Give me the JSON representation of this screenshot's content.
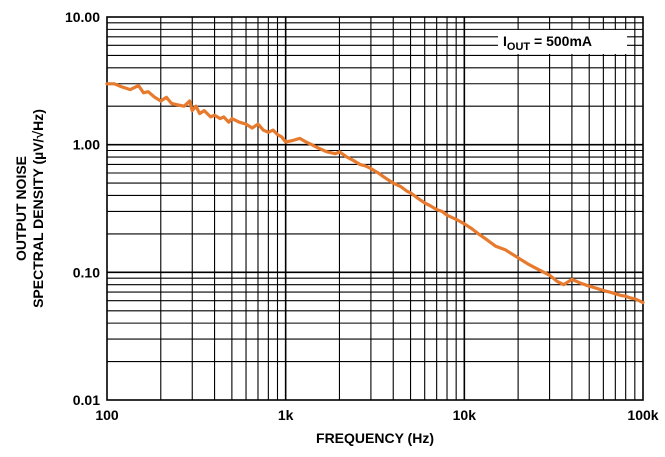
{
  "chart_data": {
    "type": "line",
    "title": "",
    "xlabel": "FREQUENCY (Hz)",
    "ylabel_line1": "OUTPUT NOISE",
    "ylabel_line2": "SPECTRAL DENSITY (µV/√Hz)",
    "x_scale": "log",
    "y_scale": "log",
    "xlim": [
      100,
      100000
    ],
    "ylim": [
      0.01,
      10
    ],
    "x_ticks": [
      {
        "value": 100,
        "label": "100"
      },
      {
        "value": 1000,
        "label": "1k"
      },
      {
        "value": 10000,
        "label": "10k"
      },
      {
        "value": 100000,
        "label": "100k"
      }
    ],
    "y_ticks": [
      {
        "value": 10,
        "label": "10.00"
      },
      {
        "value": 1,
        "label": "1.00"
      },
      {
        "value": 0.1,
        "label": "0.10"
      },
      {
        "value": 0.01,
        "label": "0.01"
      }
    ],
    "grid": true,
    "annotation": {
      "main": "I",
      "sub": "OUT",
      "rest": " = 500mA"
    },
    "series": [
      {
        "color": "#e87a2e",
        "x": [
          100,
          110,
          120,
          135,
          150,
          160,
          170,
          185,
          200,
          215,
          230,
          250,
          270,
          290,
          300,
          315,
          330,
          350,
          380,
          400,
          430,
          450,
          480,
          500,
          550,
          600,
          650,
          700,
          750,
          800,
          850,
          900,
          950,
          1000,
          1100,
          1200,
          1300,
          1400,
          1500,
          1700,
          1900,
          2000,
          2200,
          2400,
          2600,
          2800,
          3000,
          3300,
          3600,
          4000,
          4400,
          4800,
          5000,
          5500,
          6000,
          6500,
          7000,
          7500,
          8000,
          9000,
          10000,
          11000,
          12000,
          13000,
          15000,
          17000,
          20000,
          23000,
          26000,
          30000,
          33000,
          36000,
          40000,
          45000,
          50000,
          55000,
          60000,
          65000,
          70000,
          75000,
          80000,
          85000,
          90000,
          95000,
          100000
        ],
        "values": [
          3.0,
          3.0,
          2.85,
          2.7,
          2.9,
          2.55,
          2.6,
          2.35,
          2.2,
          2.35,
          2.1,
          2.05,
          2.0,
          2.2,
          1.85,
          2.0,
          1.75,
          1.85,
          1.65,
          1.7,
          1.6,
          1.65,
          1.5,
          1.6,
          1.5,
          1.45,
          1.35,
          1.45,
          1.3,
          1.25,
          1.3,
          1.2,
          1.15,
          1.05,
          1.08,
          1.12,
          1.05,
          1.0,
          0.95,
          0.88,
          0.85,
          0.88,
          0.8,
          0.75,
          0.7,
          0.68,
          0.65,
          0.6,
          0.55,
          0.5,
          0.47,
          0.43,
          0.42,
          0.38,
          0.35,
          0.33,
          0.31,
          0.3,
          0.28,
          0.26,
          0.24,
          0.22,
          0.2,
          0.185,
          0.16,
          0.15,
          0.13,
          0.115,
          0.105,
          0.095,
          0.085,
          0.08,
          0.088,
          0.082,
          0.078,
          0.075,
          0.072,
          0.07,
          0.068,
          0.066,
          0.065,
          0.063,
          0.062,
          0.06,
          0.058
        ]
      }
    ]
  }
}
